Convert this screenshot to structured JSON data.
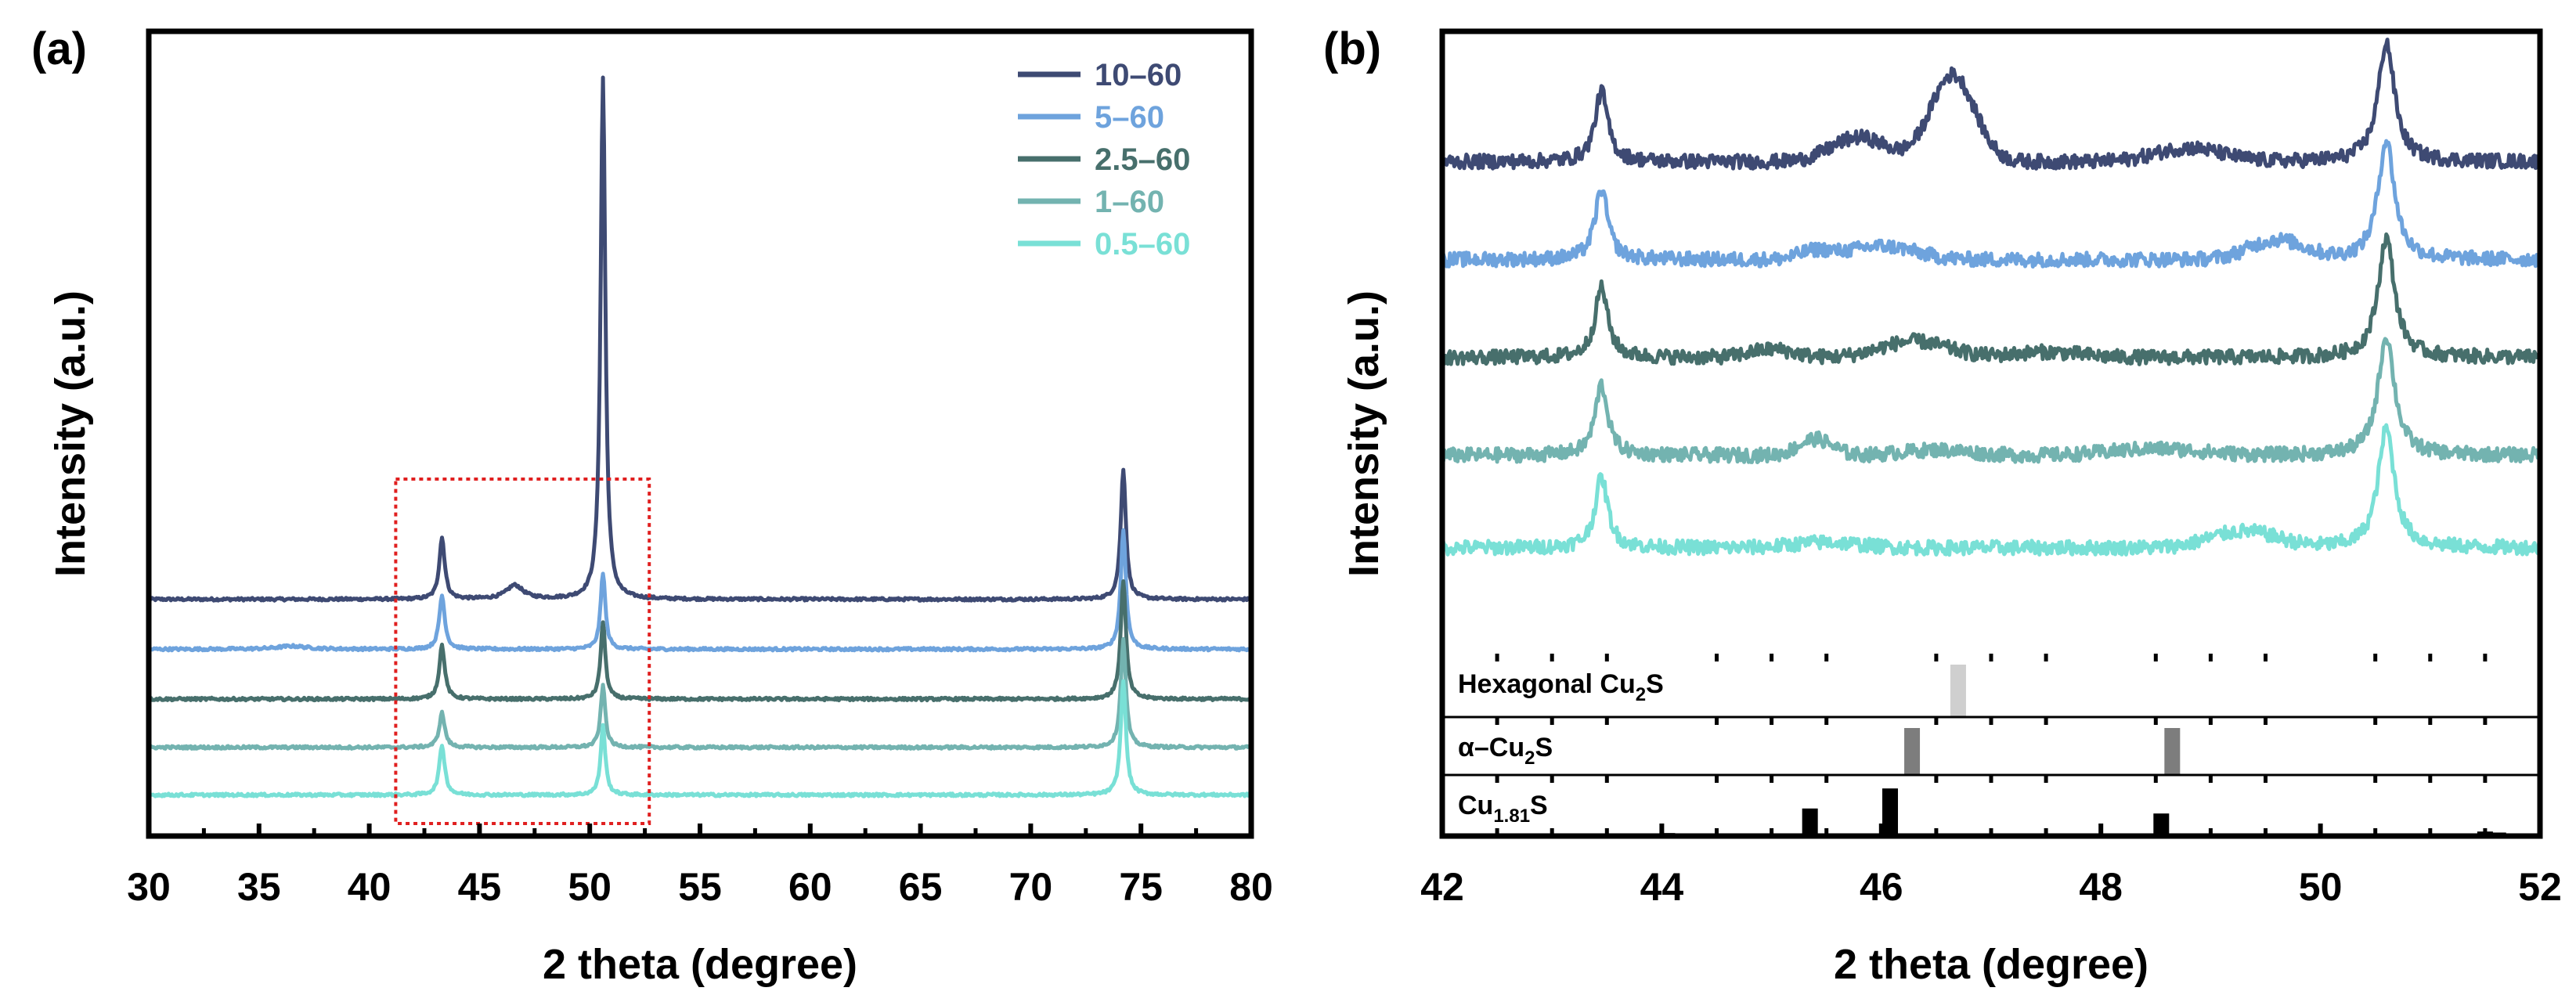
{
  "colors": {
    "10-60": "#3e4a73",
    "5-60": "#6ea3dd",
    "2.5-60": "#476f6c",
    "1-60": "#73b3b0",
    "0.5-60": "#79e0d6",
    "zoom_box": "#e01f1f"
  },
  "chart_data": [
    {
      "panel": "(a)",
      "type": "line",
      "title": "",
      "xlabel": "2 theta (degree)",
      "ylabel": "Intensity (a.u.)",
      "xlim": [
        30,
        80
      ],
      "xticks": [
        "30",
        "35",
        "40",
        "45",
        "50",
        "55",
        "60",
        "65",
        "70",
        "75",
        "80"
      ],
      "y_range_au": [
        0,
        100
      ],
      "legend": {
        "position": "top-right",
        "entries": [
          "10–60",
          "5–60",
          "2.5–60",
          "1–60",
          "0.5–60"
        ]
      },
      "zoom_region": {
        "x": [
          41.2,
          52.7
        ],
        "style": "dotted red box"
      },
      "series": [
        {
          "name": "10–60",
          "baseline_au": 28.0,
          "peaks": [
            [
              43.3,
              8.0,
              0.15
            ],
            [
              46.6,
              1.8,
              0.45
            ],
            [
              50.6,
              68.0,
              0.13
            ],
            [
              74.2,
              17.0,
              0.14
            ]
          ]
        },
        {
          "name": "5–60",
          "baseline_au": 21.5,
          "peaks": [
            [
              36.5,
              0.4,
              0.8
            ],
            [
              43.3,
              7.0,
              0.15
            ],
            [
              50.6,
              10.0,
              0.13
            ],
            [
              74.2,
              15.5,
              0.14
            ]
          ]
        },
        {
          "name": "2.5–60",
          "baseline_au": 15.0,
          "peaks": [
            [
              43.3,
              7.0,
              0.15
            ],
            [
              50.6,
              10.0,
              0.13
            ],
            [
              74.2,
              15.5,
              0.14
            ]
          ]
        },
        {
          "name": "1–60",
          "baseline_au": 8.7,
          "peaks": [
            [
              43.3,
              4.5,
              0.15
            ],
            [
              50.6,
              8.0,
              0.13
            ],
            [
              74.2,
              14.0,
              0.14
            ]
          ]
        },
        {
          "name": "0.5–60",
          "baseline_au": 2.5,
          "peaks": [
            [
              43.3,
              6.5,
              0.15
            ],
            [
              50.6,
              9.0,
              0.13
            ],
            [
              74.2,
              15.0,
              0.14
            ]
          ]
        }
      ]
    },
    {
      "panel": "(b)",
      "type": "line",
      "title": "",
      "xlabel": "2 theta (degree)",
      "ylabel": "Intensity (a.u.)",
      "xlim": [
        42,
        52
      ],
      "xticks": [
        "42",
        "44",
        "46",
        "48",
        "50",
        "52"
      ],
      "y_range_au": [
        -48,
        100
      ],
      "series": [
        {
          "name": "10–60",
          "offset_au": 76,
          "features": [
            [
              45.8,
              4.5,
              0.25
            ],
            [
              46.65,
              16.0,
              0.2
            ],
            [
              48.8,
              2.5,
              0.3
            ]
          ]
        },
        {
          "name": "5–60",
          "offset_au": 58,
          "features": [
            [
              45.4,
              1.5,
              0.15
            ],
            [
              46.0,
              2.5,
              0.3
            ],
            [
              49.6,
              3.5,
              0.25
            ]
          ]
        },
        {
          "name": "2.5–60",
          "offset_au": 40,
          "features": [
            [
              45.0,
              1.5,
              0.2
            ],
            [
              46.3,
              3.0,
              0.3
            ],
            [
              47.5,
              1.0,
              0.3
            ]
          ]
        },
        {
          "name": "1–60",
          "offset_au": 22,
          "features": [
            [
              45.4,
              3.0,
              0.15
            ],
            [
              46.5,
              1.0,
              0.3
            ],
            [
              48.5,
              1.2,
              0.4
            ]
          ]
        },
        {
          "name": "0.5–60",
          "offset_au": 5,
          "features": [
            [
              45.5,
              1.0,
              0.3
            ],
            [
              49.3,
              3.0,
              0.3
            ]
          ]
        }
      ],
      "reference_patterns": [
        {
          "label_main": "Hexagonal Cu",
          "label_sub": "2",
          "label_tail": "S",
          "color": "#cfcfcf",
          "lines": [
            [
              46.7,
              1.0
            ]
          ]
        },
        {
          "label_main": "α–Cu",
          "label_sub": "2",
          "label_tail": "S",
          "color": "#7d7d7d",
          "lines": [
            [
              46.28,
              1.0
            ],
            [
              48.65,
              1.0
            ]
          ]
        },
        {
          "label_main": "Cu",
          "label_sub": "1.81",
          "label_tail": "S",
          "color": "#000000",
          "lines": [
            [
              45.35,
              0.55
            ],
            [
              46.08,
              0.95
            ],
            [
              48.55,
              0.45
            ],
            [
              44.05,
              0.06
            ],
            [
              47.6,
              0.05
            ],
            [
              51.3,
              0.05
            ],
            [
              51.5,
              0.09
            ],
            [
              51.62,
              0.07
            ],
            [
              51.75,
              0.05
            ]
          ]
        }
      ]
    }
  ]
}
